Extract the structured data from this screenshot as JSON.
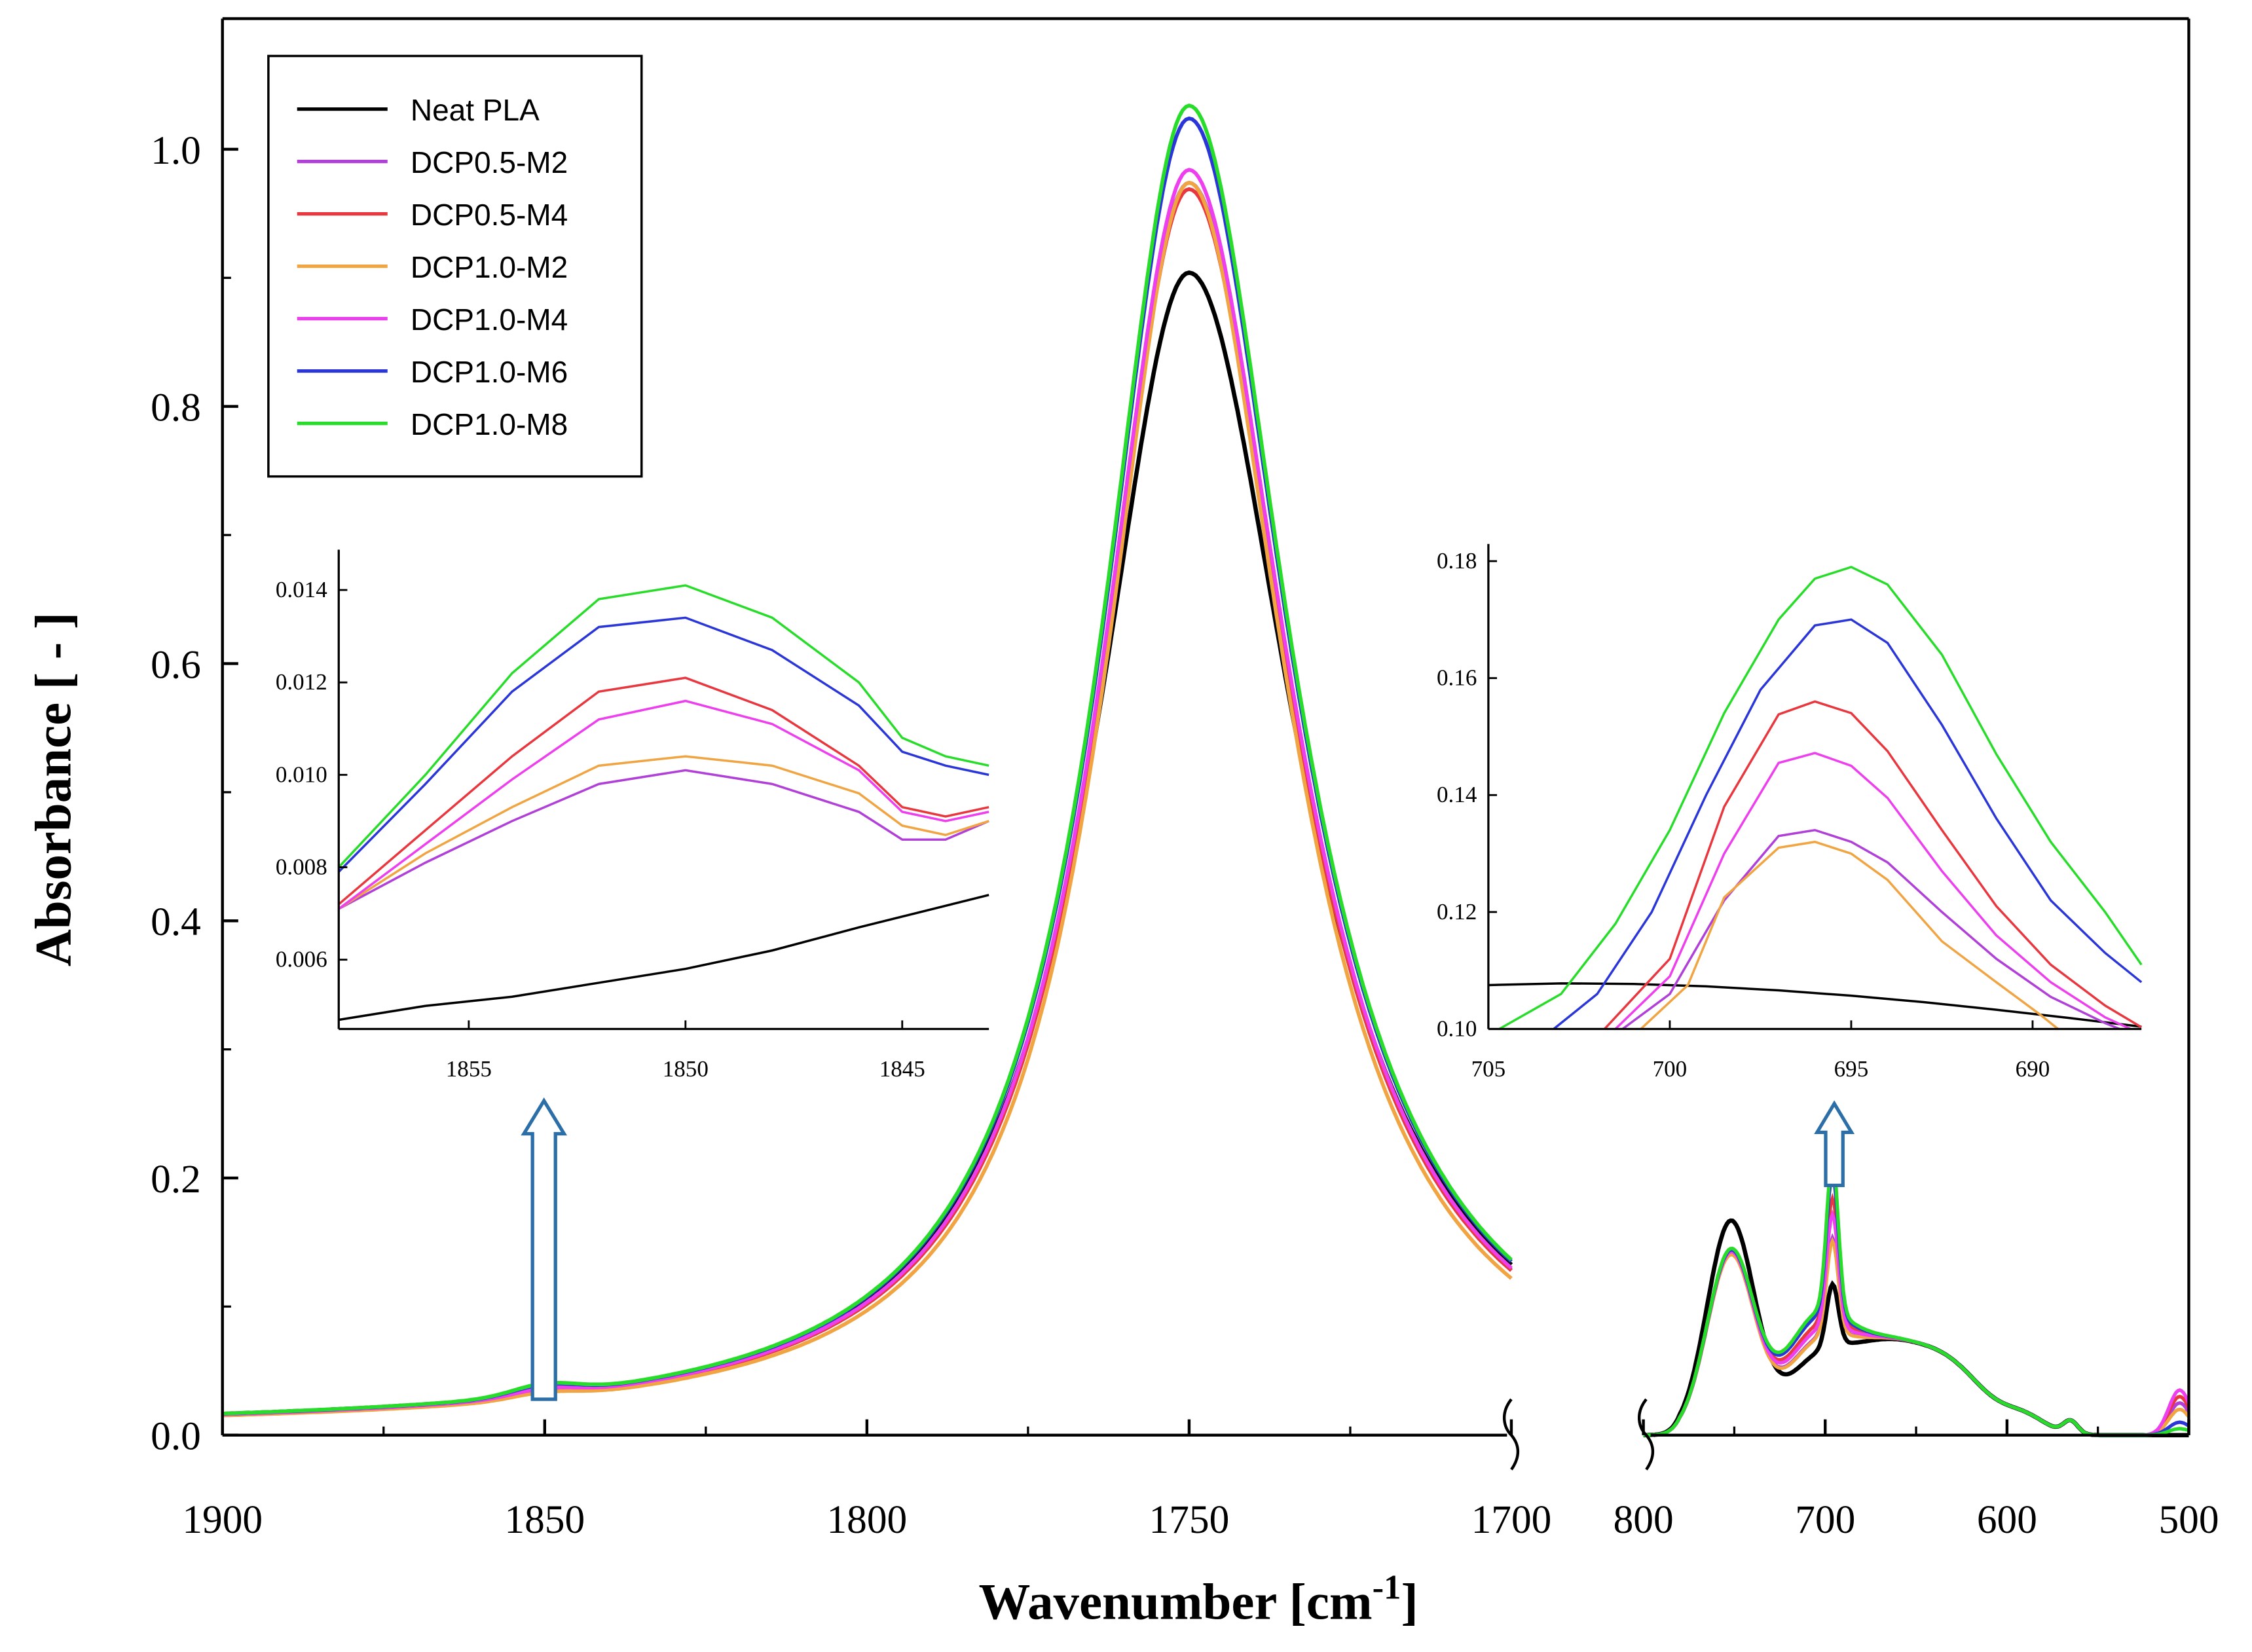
{
  "chart_data": {
    "type": "line",
    "title": "",
    "xlabel": "Wavenumber [cm",
    "xlabel_sup": "-1",
    "xlabel_end": "]",
    "ylabel": "Absorbance [ - ]",
    "ylim": [
      0,
      1.1
    ],
    "yticks": [
      "0.0",
      "0.2",
      "0.4",
      "0.6",
      "0.8",
      "1.0"
    ],
    "break_axis": true,
    "segments": [
      {
        "xlim": [
          1900,
          1700
        ],
        "xticks": [
          "1900",
          "1850",
          "1800",
          "1750",
          "1700"
        ]
      },
      {
        "xlim": [
          800,
          500
        ],
        "xticks": [
          "800",
          "700",
          "600",
          "500"
        ]
      }
    ],
    "legend": {
      "position": "top-left"
    },
    "colors": {
      "Neat PLA": "#000000",
      "DCP0.5-M2": "#B040D8",
      "DCP0.5-M4": "#E8373E",
      "DCP1.0-M2": "#F0A442",
      "DCP1.0-M4": "#EE3FEE",
      "DCP1.0-M6": "#2B36D9",
      "DCP1.0-M8": "#28DD2A"
    },
    "series": [
      {
        "name": "Neat PLA",
        "peak_1750": 0.9,
        "width_1750": 17,
        "baseline_1850": 0.008,
        "peak_750": 0.185,
        "peak_695": 0.108,
        "tail_500": 0.0
      },
      {
        "name": "DCP0.5-M2",
        "peak_1750": 0.97,
        "width_1750": 16,
        "baseline_1850": 0.01,
        "peak_750": 0.16,
        "peak_695": 0.134,
        "tail_500": 0.025
      },
      {
        "name": "DCP0.5-M4",
        "peak_1750": 0.965,
        "width_1750": 16,
        "baseline_1850": 0.012,
        "peak_750": 0.16,
        "peak_695": 0.156,
        "tail_500": 0.03
      },
      {
        "name": "DCP1.0-M2",
        "peak_1750": 0.97,
        "width_1750": 15.5,
        "baseline_1850": 0.0105,
        "peak_750": 0.158,
        "peak_695": 0.132,
        "tail_500": 0.02
      },
      {
        "name": "DCP1.0-M4",
        "peak_1750": 0.98,
        "width_1750": 16,
        "baseline_1850": 0.0115,
        "peak_750": 0.16,
        "peak_695": 0.147,
        "tail_500": 0.035
      },
      {
        "name": "DCP1.0-M6",
        "peak_1750": 1.02,
        "width_1750": 16,
        "baseline_1850": 0.0135,
        "peak_750": 0.161,
        "peak_695": 0.17,
        "tail_500": 0.01
      },
      {
        "name": "DCP1.0-M8",
        "peak_1750": 1.03,
        "width_1750": 16,
        "baseline_1850": 0.014,
        "peak_750": 0.162,
        "peak_695": 0.178,
        "tail_500": 0.005
      }
    ],
    "insets": [
      {
        "name": "inset-1850",
        "xlim": [
          1858,
          1843
        ],
        "ylim": [
          0.0045,
          0.0145
        ],
        "xticks": [
          "1855",
          "1850",
          "1845"
        ],
        "yticks": [
          "0.006",
          "0.008",
          "0.010",
          "0.012",
          "0.014"
        ],
        "series": [
          {
            "name": "Neat PLA",
            "x": [
              1858,
              1856,
              1854,
              1852,
              1850,
              1848,
              1846,
              1843
            ],
            "y": [
              0.0047,
              0.005,
              0.0052,
              0.0055,
              0.0058,
              0.0062,
              0.0067,
              0.0074
            ]
          },
          {
            "name": "DCP0.5-M2",
            "x": [
              1858,
              1856,
              1854,
              1852,
              1850,
              1848,
              1846,
              1845,
              1844,
              1843
            ],
            "y": [
              0.0071,
              0.0081,
              0.009,
              0.0098,
              0.0101,
              0.0098,
              0.0092,
              0.0086,
              0.0086,
              0.009
            ]
          },
          {
            "name": "DCP0.5-M4",
            "x": [
              1858,
              1856,
              1854,
              1852,
              1850,
              1848,
              1846,
              1845,
              1844,
              1843
            ],
            "y": [
              0.0072,
              0.0088,
              0.0104,
              0.0118,
              0.0121,
              0.0114,
              0.0102,
              0.0093,
              0.0091,
              0.0093
            ]
          },
          {
            "name": "DCP1.0-M2",
            "x": [
              1858,
              1856,
              1854,
              1852,
              1850,
              1848,
              1846,
              1845,
              1844,
              1843
            ],
            "y": [
              0.0071,
              0.0083,
              0.0093,
              0.0102,
              0.0104,
              0.0102,
              0.0096,
              0.0089,
              0.0087,
              0.009
            ]
          },
          {
            "name": "DCP1.0-M4",
            "x": [
              1858,
              1856,
              1854,
              1852,
              1850,
              1848,
              1846,
              1845,
              1844,
              1843
            ],
            "y": [
              0.0071,
              0.0085,
              0.0099,
              0.0112,
              0.0116,
              0.0111,
              0.0101,
              0.0092,
              0.009,
              0.0092
            ]
          },
          {
            "name": "DCP1.0-M6",
            "x": [
              1858,
              1856,
              1854,
              1852,
              1850,
              1848,
              1846,
              1845,
              1844,
              1843
            ],
            "y": [
              0.0079,
              0.0098,
              0.0118,
              0.0132,
              0.0134,
              0.0127,
              0.0115,
              0.0105,
              0.0102,
              0.01
            ]
          },
          {
            "name": "DCP1.0-M8",
            "x": [
              1858,
              1856,
              1854,
              1852,
              1850,
              1848,
              1846,
              1845,
              1844,
              1843
            ],
            "y": [
              0.008,
              0.01,
              0.0122,
              0.0138,
              0.0141,
              0.0134,
              0.012,
              0.0108,
              0.0104,
              0.0102
            ]
          }
        ]
      },
      {
        "name": "inset-695",
        "xlim": [
          705,
          687
        ],
        "ylim": [
          0.1,
          0.18
        ],
        "xticks": [
          "705",
          "700",
          "695",
          "690"
        ],
        "yticks": [
          "0.10",
          "0.12",
          "0.14",
          "0.16",
          "0.18"
        ],
        "series": [
          {
            "name": "Neat PLA",
            "x": [
              705,
              703,
              701,
              699,
              697,
              695,
              693,
              691,
              689,
              687
            ],
            "y": [
              0.1075,
              0.1078,
              0.1077,
              0.1073,
              0.1066,
              0.1057,
              0.1046,
              0.1033,
              0.1019,
              0.1004
            ]
          },
          {
            "name": "DCP0.5-M2",
            "x": [
              701.3,
              700,
              698.5,
              697,
              696,
              695,
              694,
              692.5,
              691,
              689.5,
              688,
              687.6
            ],
            "y": [
              0.1,
              0.106,
              0.122,
              0.133,
              0.134,
              0.132,
              0.1285,
              0.12,
              0.112,
              0.1055,
              0.101,
              0.1
            ]
          },
          {
            "name": "DCP0.5-M4",
            "x": [
              701.8,
              700,
              698.5,
              697,
              696,
              695,
              694,
              692.5,
              691,
              689.5,
              688,
              687
            ],
            "y": [
              0.1,
              0.112,
              0.138,
              0.1538,
              0.156,
              0.154,
              0.1475,
              0.134,
              0.121,
              0.111,
              0.104,
              0.1003
            ]
          },
          {
            "name": "DCP1.0-M2",
            "x": [
              700.8,
              699.5,
              698.5,
              697,
              696,
              695,
              694,
              692.5,
              691,
              689.8,
              689.3
            ],
            "y": [
              0.1,
              0.1075,
              0.1225,
              0.131,
              0.132,
              0.13,
              0.1255,
              0.115,
              0.108,
              0.1025,
              0.1
            ]
          },
          {
            "name": "DCP1.0-M4",
            "x": [
              701.5,
              700,
              698.5,
              697,
              696,
              695,
              694,
              692.5,
              691,
              689.5,
              688,
              687.3
            ],
            "y": [
              0.1,
              0.109,
              0.13,
              0.1455,
              0.1472,
              0.145,
              0.1395,
              0.127,
              0.116,
              0.108,
              0.102,
              0.1
            ]
          },
          {
            "name": "DCP1.0-M6",
            "x": [
              703.2,
              702,
              700.5,
              699,
              697.5,
              696,
              695,
              694,
              692.5,
              691,
              689.5,
              688,
              687
            ],
            "y": [
              0.1,
              0.106,
              0.12,
              0.14,
              0.158,
              0.169,
              0.17,
              0.166,
              0.152,
              0.136,
              0.122,
              0.113,
              0.108
            ]
          },
          {
            "name": "DCP1.0-M8",
            "x": [
              704.7,
              703,
              701.5,
              700,
              698.5,
              697,
              696,
              695,
              694,
              692.5,
              691,
              689.5,
              688,
              687
            ],
            "y": [
              0.1,
              0.106,
              0.118,
              0.134,
              0.154,
              0.17,
              0.177,
              0.179,
              0.176,
              0.164,
              0.147,
              0.132,
              0.12,
              0.111
            ]
          }
        ]
      }
    ]
  }
}
